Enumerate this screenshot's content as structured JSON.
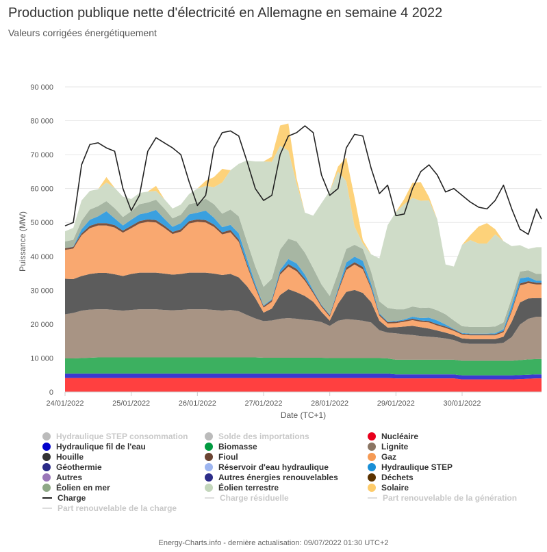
{
  "title": "Production publique nette d'électricité en Allemagne en semaine 4 2022",
  "subtitle": "Valeurs corrigées énergétiquement",
  "credits": "Energy-Charts.info - dernière actualisation: 09/07/2022 01:30 UTC+2",
  "chart_data": {
    "type": "area",
    "stacked": true,
    "xlabel": "Date (TC+1)",
    "ylabel": "Puissance (MW)",
    "ylim": [
      0,
      90000
    ],
    "yticks": [
      0,
      10000,
      20000,
      30000,
      40000,
      50000,
      60000,
      70000,
      80000,
      90000
    ],
    "ytick_labels": [
      "0",
      "10 000",
      "20 000",
      "30 000",
      "40 000",
      "50 000",
      "60 000",
      "70 000",
      "80 000",
      "90 000"
    ],
    "xlim": [
      0,
      7.2
    ],
    "x_tick_positions": [
      0,
      1,
      2,
      3,
      4,
      5,
      6
    ],
    "x_tick_labels": [
      "24/01/2022",
      "25/01/2022",
      "26/01/2022",
      "27/01/2022",
      "28/01/2022",
      "29/01/2022",
      "30/01/2022"
    ],
    "grid": true,
    "legend_position": "bottom",
    "x": [
      0,
      0.125,
      0.25,
      0.375,
      0.5,
      0.625,
      0.75,
      0.875,
      1,
      1.125,
      1.25,
      1.375,
      1.5,
      1.625,
      1.75,
      1.875,
      2,
      2.125,
      2.25,
      2.375,
      2.5,
      2.625,
      2.75,
      2.875,
      3,
      3.125,
      3.25,
      3.375,
      3.5,
      3.625,
      3.75,
      3.875,
      4,
      4.125,
      4.25,
      4.375,
      4.5,
      4.625,
      4.75,
      4.875,
      5,
      5.125,
      5.25,
      5.375,
      5.5,
      5.625,
      5.75,
      5.875,
      6,
      6.125,
      6.25,
      6.375,
      6.5,
      6.625,
      6.75,
      6.875,
      7,
      7.125,
      7.2
    ],
    "series": [
      {
        "name": "Nucléaire",
        "color": "#ff4040",
        "values": [
          4100,
          4100,
          4100,
          4100,
          4100,
          4100,
          4100,
          4100,
          4100,
          4100,
          4100,
          4100,
          4100,
          4100,
          4100,
          4100,
          4100,
          4100,
          4100,
          4100,
          4100,
          4100,
          4100,
          4100,
          4100,
          4100,
          4100,
          4100,
          4100,
          4100,
          4100,
          4100,
          4100,
          4100,
          4100,
          4100,
          4100,
          4100,
          4100,
          4100,
          4000,
          4000,
          4000,
          4000,
          4000,
          4000,
          4000,
          4000,
          3700,
          3700,
          3700,
          3700,
          3700,
          3700,
          3700,
          3800,
          3900,
          4000,
          4000
        ]
      },
      {
        "name": "Hydraulique fil de l'eau",
        "color": "#3a3ad0",
        "values": [
          1300,
          1300,
          1300,
          1300,
          1300,
          1300,
          1300,
          1300,
          1300,
          1300,
          1300,
          1300,
          1300,
          1300,
          1300,
          1300,
          1300,
          1300,
          1300,
          1300,
          1300,
          1300,
          1300,
          1300,
          1300,
          1300,
          1300,
          1300,
          1300,
          1300,
          1300,
          1300,
          1300,
          1300,
          1300,
          1300,
          1300,
          1300,
          1300,
          1300,
          1200,
          1200,
          1200,
          1200,
          1200,
          1200,
          1200,
          1200,
          1200,
          1200,
          1200,
          1200,
          1200,
          1200,
          1200,
          1200,
          1200,
          1200,
          1200
        ]
      },
      {
        "name": "Biomasse",
        "color": "#3cb060",
        "values": [
          4500,
          4500,
          4600,
          4700,
          4800,
          4800,
          4800,
          4800,
          4800,
          4800,
          4800,
          4800,
          4800,
          4800,
          4800,
          4800,
          4800,
          4800,
          4800,
          4800,
          4800,
          4800,
          4800,
          4800,
          4700,
          4700,
          4700,
          4700,
          4700,
          4700,
          4700,
          4700,
          4600,
          4600,
          4600,
          4600,
          4600,
          4600,
          4600,
          4500,
          4300,
          4300,
          4300,
          4300,
          4300,
          4300,
          4300,
          4300,
          4300,
          4300,
          4300,
          4300,
          4300,
          4300,
          4300,
          4400,
          4500,
          4500,
          4500
        ]
      },
      {
        "name": "Lignite",
        "color": "#a89484",
        "values": [
          13000,
          13400,
          14000,
          14200,
          14200,
          14200,
          14000,
          13800,
          14000,
          14200,
          14200,
          14200,
          14000,
          13900,
          14000,
          14200,
          14200,
          14200,
          14000,
          13800,
          14000,
          13600,
          12500,
          11500,
          10800,
          11000,
          11500,
          11700,
          11500,
          11200,
          11000,
          10500,
          9500,
          11000,
          11500,
          11300,
          11000,
          10500,
          8200,
          7600,
          7800,
          7500,
          7300,
          7000,
          6800,
          6600,
          6300,
          5800,
          5200,
          5000,
          5000,
          5000,
          5000,
          5300,
          7000,
          10500,
          12000,
          12500,
          12500
        ]
      },
      {
        "name": "Houille",
        "color": "#5c5c5c",
        "values": [
          10500,
          10000,
          10200,
          10500,
          10700,
          10700,
          10500,
          10200,
          10600,
          10800,
          10800,
          10800,
          10700,
          10500,
          10600,
          10800,
          10800,
          10800,
          10700,
          10500,
          10600,
          10000,
          8500,
          6000,
          2500,
          3500,
          7000,
          8500,
          7800,
          7000,
          5500,
          3000,
          1500,
          5000,
          8000,
          8800,
          8200,
          6000,
          2800,
          1500,
          1800,
          2300,
          2700,
          2600,
          2400,
          2000,
          1700,
          1500,
          1400,
          1400,
          1400,
          1400,
          1400,
          1800,
          4500,
          6500,
          6000,
          5500,
          5500
        ]
      },
      {
        "name": "Gaz",
        "color": "#f9a870",
        "values": [
          8500,
          9000,
          12000,
          13500,
          14000,
          14000,
          13800,
          12800,
          13500,
          14500,
          15000,
          14800,
          13500,
          12000,
          12500,
          14500,
          15000,
          14800,
          13800,
          12000,
          12300,
          10500,
          6000,
          3000,
          1500,
          2000,
          6000,
          6700,
          6200,
          4500,
          2500,
          1500,
          1200,
          3500,
          6500,
          7500,
          7000,
          4000,
          1500,
          1200,
          1200,
          1400,
          1700,
          1600,
          1800,
          1500,
          1400,
          1200,
          1100,
          1100,
          1100,
          1100,
          1100,
          1300,
          3000,
          5000,
          4500,
          4000,
          4000
        ]
      },
      {
        "name": "Fioul",
        "color": "#7a5240",
        "values": [
          500,
          500,
          600,
          700,
          700,
          700,
          700,
          600,
          700,
          700,
          700,
          700,
          700,
          600,
          700,
          700,
          700,
          700,
          700,
          600,
          700,
          700,
          600,
          500,
          400,
          500,
          600,
          700,
          700,
          600,
          500,
          400,
          400,
          500,
          700,
          700,
          700,
          500,
          400,
          400,
          400,
          400,
          400,
          400,
          400,
          400,
          400,
          400,
          300,
          300,
          300,
          300,
          300,
          400,
          500,
          600,
          600,
          500,
          500
        ]
      },
      {
        "name": "Hydraulique STEP",
        "color": "#3aa0e0",
        "values": [
          0,
          100,
          1200,
          1800,
          2000,
          3500,
          2000,
          1500,
          1800,
          2000,
          2000,
          3000,
          2000,
          1500,
          1800,
          2000,
          2000,
          2800,
          2000,
          1500,
          1500,
          1800,
          1500,
          800,
          200,
          300,
          800,
          1500,
          1600,
          1200,
          400,
          200,
          200,
          500,
          1500,
          1600,
          1800,
          1000,
          300,
          200,
          200,
          300,
          600,
          700,
          1000,
          1100,
          600,
          200,
          200,
          200,
          200,
          200,
          300,
          500,
          1500,
          1500,
          1200,
          600,
          600
        ]
      },
      {
        "name": "Éolien en mer",
        "color": "#a7b6a3",
        "values": [
          2000,
          2000,
          2500,
          3000,
          3000,
          3000,
          3000,
          2500,
          2500,
          3000,
          3000,
          3000,
          3000,
          2500,
          2500,
          3000,
          3000,
          3500,
          4000,
          4000,
          4500,
          5000,
          5000,
          5000,
          5500,
          6000,
          6000,
          6000,
          6500,
          6500,
          6500,
          6000,
          5500,
          4500,
          4000,
          3500,
          3500,
          3500,
          3500,
          4000,
          3500,
          3000,
          3000,
          3000,
          3000,
          3000,
          3000,
          2500,
          2000,
          2000,
          2000,
          2000,
          2000,
          2000,
          2000,
          2000,
          2000,
          2000,
          2000
        ]
      },
      {
        "name": "Éolien terrestre",
        "color": "#cfdcc8",
        "values": [
          3000,
          3500,
          6000,
          5500,
          5000,
          5500,
          6000,
          6000,
          3600,
          3300,
          3200,
          2600,
          2800,
          2900,
          3000,
          3000,
          4100,
          3800,
          5000,
          9200,
          11600,
          15500,
          24000,
          31000,
          37000,
          34500,
          30600,
          26000,
          17000,
          11800,
          15500,
          24000,
          31000,
          30000,
          20000,
          5400,
          1600,
          5100,
          12700,
          24400,
          28700,
          31000,
          32000,
          31600,
          31600,
          26800,
          14700,
          15900,
          24000,
          25600,
          24600,
          24600,
          27200,
          24000,
          15300,
          7800,
          6300,
          7900,
          7900
        ]
      },
      {
        "name": "Solaire",
        "color": "#fdd27a",
        "values": [
          0,
          0,
          0,
          0,
          0,
          1600,
          0,
          0,
          0,
          0,
          0,
          1500,
          0,
          0,
          0,
          0,
          0,
          1500,
          3000,
          4000,
          0,
          0,
          0,
          0,
          0,
          1500,
          6000,
          8000,
          1500,
          0,
          0,
          0,
          0,
          1500,
          7000,
          8500,
          1000,
          0,
          0,
          0,
          0,
          1500,
          4500,
          5500,
          1000,
          0,
          0,
          0,
          0,
          1500,
          5000,
          6000,
          1500,
          0,
          0,
          0,
          0,
          0,
          0
        ]
      }
    ],
    "line_series": [
      {
        "name": "Charge",
        "color": "#222222",
        "values": [
          49000,
          50000,
          67000,
          73000,
          73500,
          72000,
          71000,
          60000,
          53500,
          58000,
          71000,
          75000,
          73500,
          72000,
          70000,
          62000,
          55000,
          58000,
          72000,
          76500,
          77000,
          75500,
          68000,
          60000,
          56500,
          58000,
          70000,
          75500,
          76500,
          78500,
          76500,
          64000,
          58000,
          60000,
          72000,
          76000,
          75500,
          66000,
          58500,
          61000,
          52000,
          52500,
          60000,
          65000,
          67000,
          64000,
          59000,
          60000,
          58000,
          56000,
          54500,
          54000,
          56500,
          61000,
          54000,
          48000,
          46500,
          54000,
          51000
        ]
      }
    ],
    "legend": [
      {
        "label": "Hydraulique STEP consommation",
        "color": "#bbbbbb",
        "kind": "dot",
        "hidden": true
      },
      {
        "label": "Solde des importations",
        "color": "#bbbbbb",
        "kind": "dot",
        "hidden": true
      },
      {
        "label": "Nucléaire",
        "color": "#e8001c",
        "kind": "dot",
        "hidden": false
      },
      {
        "label": "Hydraulique fil de l'eau",
        "color": "#0000cc",
        "kind": "dot",
        "hidden": false
      },
      {
        "label": "Biomasse",
        "color": "#009a40",
        "kind": "dot",
        "hidden": false
      },
      {
        "label": "Lignite",
        "color": "#8b7563",
        "kind": "dot",
        "hidden": false
      },
      {
        "label": "Houille",
        "color": "#333333",
        "kind": "dot",
        "hidden": false
      },
      {
        "label": "Fioul",
        "color": "#6b4432",
        "kind": "dot",
        "hidden": false
      },
      {
        "label": "Gaz",
        "color": "#f59a55",
        "kind": "dot",
        "hidden": false
      },
      {
        "label": "Géothermie",
        "color": "#2b2b88",
        "kind": "dot",
        "hidden": false
      },
      {
        "label": "Réservoir d'eau hydraulique",
        "color": "#9db5f0",
        "kind": "dot",
        "hidden": false
      },
      {
        "label": "Hydraulique STEP",
        "color": "#1a8fd6",
        "kind": "dot",
        "hidden": false
      },
      {
        "label": "Autres",
        "color": "#9a77b8",
        "kind": "dot",
        "hidden": false
      },
      {
        "label": "Autres énergies renouvelables",
        "color": "#2c2c88",
        "kind": "dot",
        "hidden": false
      },
      {
        "label": "Déchets",
        "color": "#5a3200",
        "kind": "dot",
        "hidden": false
      },
      {
        "label": "Éolien en mer",
        "color": "#8ea886",
        "kind": "dot",
        "hidden": false
      },
      {
        "label": "Éolien terrestre",
        "color": "#c3d6bb",
        "kind": "dot",
        "hidden": false
      },
      {
        "label": "Solaire",
        "color": "#fdcb6a",
        "kind": "dot",
        "hidden": false
      },
      {
        "label": "Charge",
        "color": "#222222",
        "kind": "line",
        "hidden": false
      },
      {
        "label": "Charge résiduelle",
        "color": "#cccccc",
        "kind": "line",
        "hidden": true
      },
      {
        "label": "Part renouvelable de la génération",
        "color": "#cccccc",
        "kind": "line",
        "hidden": true
      },
      {
        "label": "Part renouvelable de la charge",
        "color": "#cccccc",
        "kind": "line",
        "hidden": true
      }
    ]
  }
}
